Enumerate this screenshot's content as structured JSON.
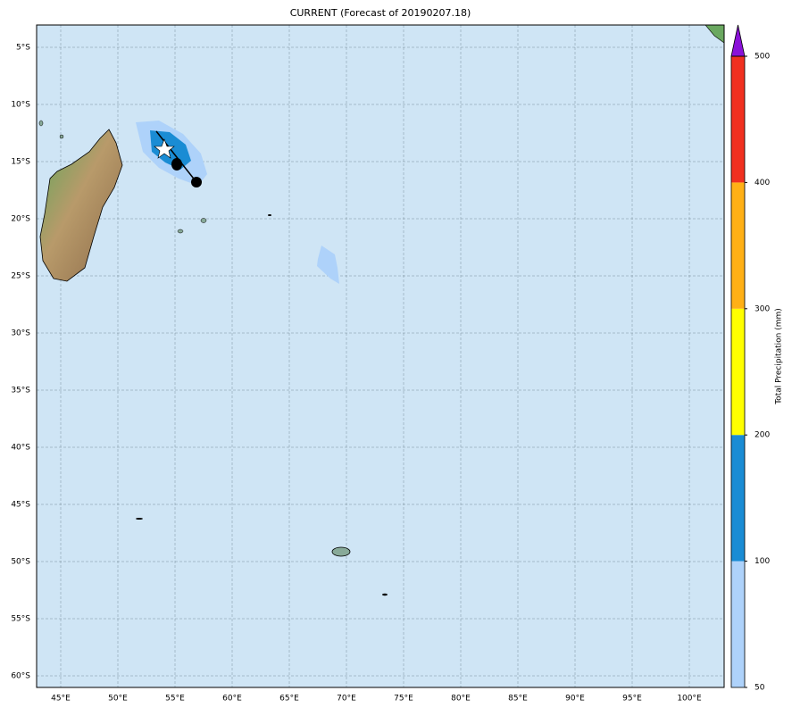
{
  "title": "CURRENT (Forecast of 20190207.18)",
  "lon_ticks": [
    {
      "value": 45,
      "label": "45°E"
    },
    {
      "value": 50,
      "label": "50°E"
    },
    {
      "value": 55,
      "label": "55°E"
    },
    {
      "value": 60,
      "label": "60°E"
    },
    {
      "value": 65,
      "label": "65°E"
    },
    {
      "value": 70,
      "label": "70°E"
    },
    {
      "value": 75,
      "label": "75°E"
    },
    {
      "value": 80,
      "label": "80°E"
    },
    {
      "value": 85,
      "label": "85°E"
    },
    {
      "value": 90,
      "label": "90°E"
    },
    {
      "value": 95,
      "label": "95°E"
    },
    {
      "value": 100,
      "label": "100°E"
    }
  ],
  "lat_ticks": [
    {
      "value": -5,
      "label": "5°S"
    },
    {
      "value": -10,
      "label": "10°S"
    },
    {
      "value": -15,
      "label": "15°S"
    },
    {
      "value": -20,
      "label": "20°S"
    },
    {
      "value": -25,
      "label": "25°S"
    },
    {
      "value": -30,
      "label": "30°S"
    },
    {
      "value": -35,
      "label": "35°S"
    },
    {
      "value": -40,
      "label": "40°S"
    },
    {
      "value": -45,
      "label": "45°S"
    },
    {
      "value": -50,
      "label": "50°S"
    },
    {
      "value": -55,
      "label": "55°S"
    },
    {
      "value": -60,
      "label": "60°S"
    }
  ],
  "colorbar": {
    "label": "Total Precipitation (mm)",
    "ticks": [
      50,
      100,
      200,
      300,
      400,
      500
    ],
    "colors": [
      "#aed2fa",
      "#1a8cd4",
      "#ffff00",
      "#ffb016",
      "#f03020"
    ],
    "extend_color": "#8a12d8"
  }
}
